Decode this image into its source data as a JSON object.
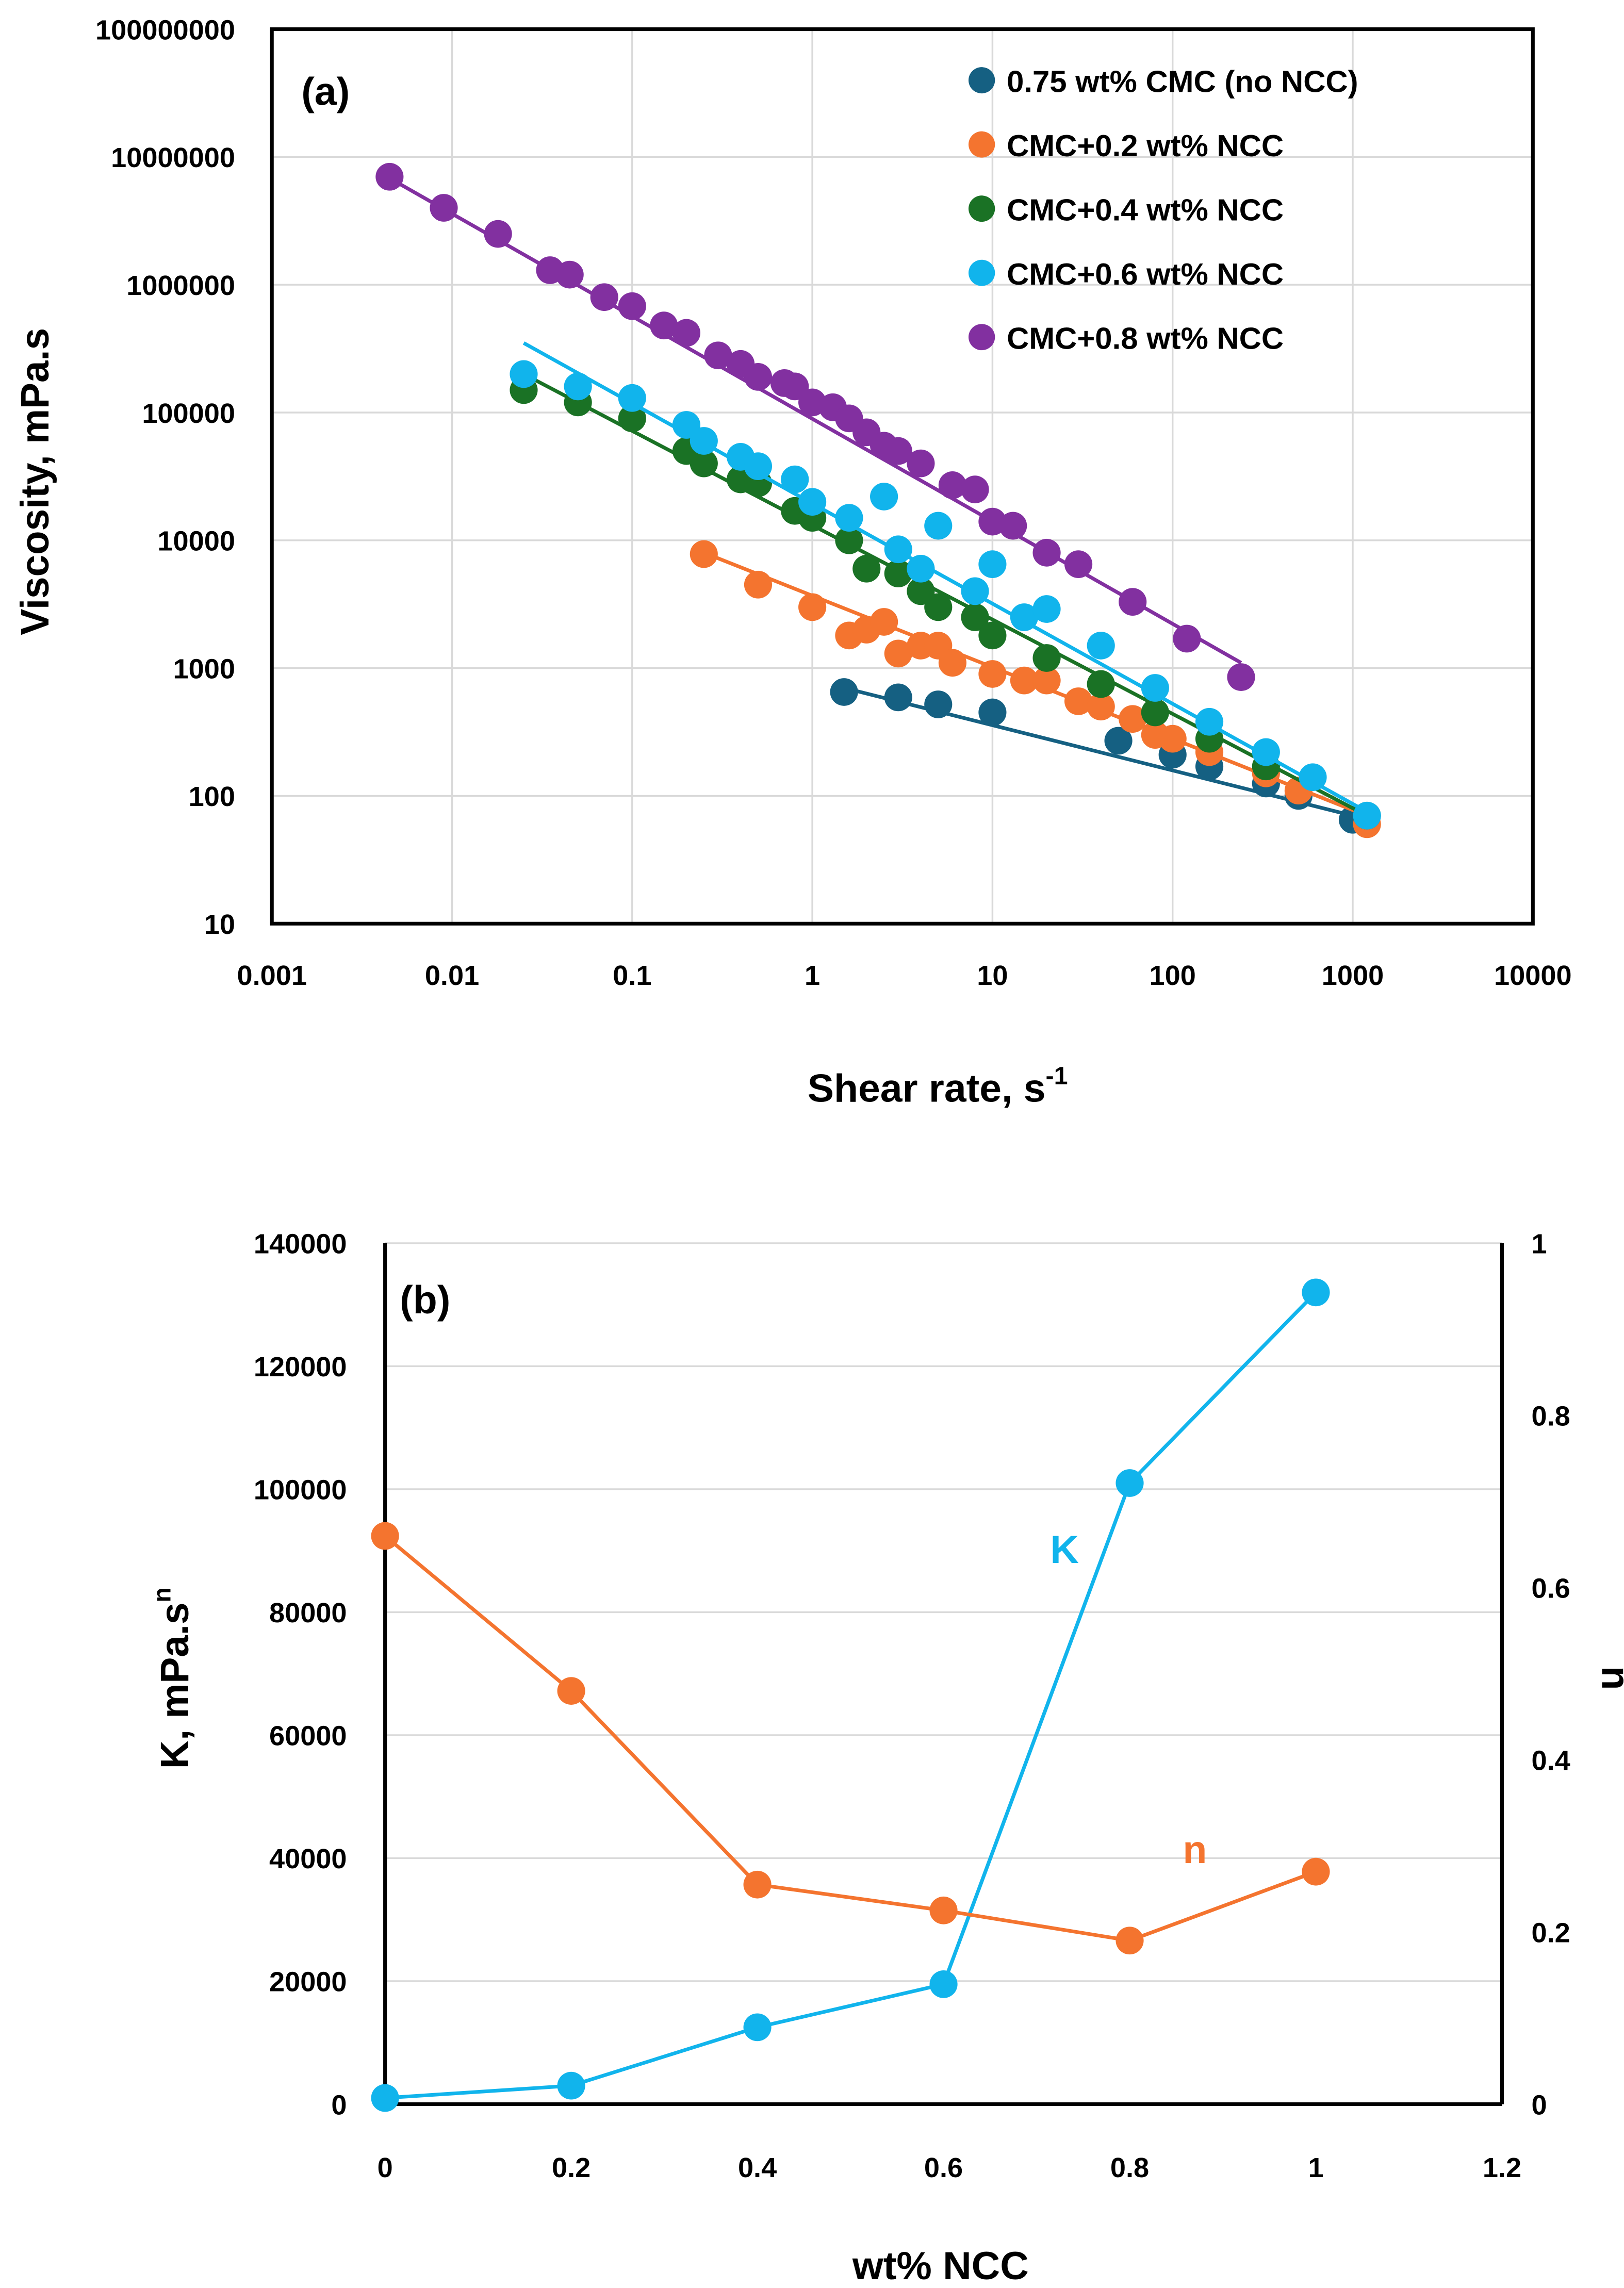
{
  "chart_data": [
    {
      "type": "scatter",
      "panel_label": "(a)",
      "xscale": "log",
      "yscale": "log",
      "xlabel_main": "Shear rate, s",
      "xlabel_sup": "-1",
      "ylabel": "Viscosity, mPa.s",
      "xlim": [
        0.001,
        10000
      ],
      "ylim": [
        10,
        100000000
      ],
      "xticks": [
        "0.001",
        "0.01",
        "0.1",
        "1",
        "10",
        "100",
        "1000",
        "10000"
      ],
      "yticks": [
        "10",
        "100",
        "1000",
        "10000",
        "100000",
        "1000000",
        "10000000",
        "100000000"
      ],
      "grid": true,
      "legend_position": "top-right",
      "series": [
        {
          "name": "0.75 wt% CMC (no NCC)",
          "color": "#156082",
          "points": [
            [
              1.5,
              650
            ],
            [
              3,
              590
            ],
            [
              5,
              520
            ],
            [
              10,
              450
            ],
            [
              50,
              270
            ],
            [
              100,
              210
            ],
            [
              160,
              170
            ],
            [
              330,
              125
            ],
            [
              500,
              100
            ],
            [
              1000,
              65
            ]
          ],
          "fit": [
            [
              1.5,
              700
            ],
            [
              1000,
              70
            ]
          ]
        },
        {
          "name": "CMC+0.2 wt% NCC",
          "color": "#F4742F",
          "points": [
            [
              0.25,
              7800
            ],
            [
              0.5,
              4500
            ],
            [
              1,
              3000
            ],
            [
              1.6,
              1800
            ],
            [
              2,
              2000
            ],
            [
              2.5,
              2300
            ],
            [
              3,
              1300
            ],
            [
              4,
              1500
            ],
            [
              5,
              1500
            ],
            [
              6,
              1100
            ],
            [
              10,
              900
            ],
            [
              15,
              800
            ],
            [
              20,
              800
            ],
            [
              30,
              550
            ],
            [
              40,
              500
            ],
            [
              60,
              400
            ],
            [
              80,
              300
            ],
            [
              100,
              280
            ],
            [
              160,
              220
            ],
            [
              330,
              150
            ],
            [
              500,
              110
            ],
            [
              1200,
              60
            ]
          ],
          "fit": [
            [
              0.25,
              8000
            ],
            [
              1200,
              70
            ]
          ]
        },
        {
          "name": "CMC+0.4 wt% NCC",
          "color": "#1A7225",
          "points": [
            [
              0.025,
              150000
            ],
            [
              0.05,
              120000
            ],
            [
              0.1,
              90000
            ],
            [
              0.2,
              50000
            ],
            [
              0.25,
              40000
            ],
            [
              0.4,
              30000
            ],
            [
              0.5,
              28000
            ],
            [
              0.8,
              17000
            ],
            [
              1,
              15000
            ],
            [
              1.6,
              10000
            ],
            [
              2,
              6000
            ],
            [
              3,
              5500
            ],
            [
              4,
              4000
            ],
            [
              5,
              3000
            ],
            [
              8,
              2500
            ],
            [
              10,
              1800
            ],
            [
              20,
              1200
            ],
            [
              40,
              750
            ],
            [
              80,
              450
            ],
            [
              160,
              280
            ],
            [
              330,
              170
            ],
            [
              1200,
              70
            ]
          ],
          "fit": [
            [
              0.025,
              200000
            ],
            [
              1200,
              70
            ]
          ]
        },
        {
          "name": "CMC+0.6 wt% NCC",
          "color": "#11B4EC",
          "points": [
            [
              0.025,
              200000
            ],
            [
              0.05,
              160000
            ],
            [
              0.1,
              130000
            ],
            [
              0.2,
              80000
            ],
            [
              0.25,
              60000
            ],
            [
              0.4,
              45000
            ],
            [
              0.5,
              38000
            ],
            [
              0.8,
              30000
            ],
            [
              1,
              20000
            ],
            [
              1.6,
              15000
            ],
            [
              2.5,
              22000
            ],
            [
              3,
              8500
            ],
            [
              4,
              6000
            ],
            [
              5,
              13000
            ],
            [
              8,
              4000
            ],
            [
              10,
              6500
            ],
            [
              15,
              2500
            ],
            [
              20,
              2900
            ],
            [
              40,
              1500
            ],
            [
              80,
              700
            ],
            [
              160,
              380
            ],
            [
              330,
              220
            ],
            [
              600,
              140
            ],
            [
              1200,
              70
            ]
          ],
          "fit": [
            [
              0.025,
              350000
            ],
            [
              1200,
              75
            ]
          ]
        },
        {
          "name": "CMC+0.8 wt% NCC",
          "color": "#8230A0",
          "points": [
            [
              0.0045,
              7000000
            ],
            [
              0.009,
              4000000
            ],
            [
              0.018,
              2500000
            ],
            [
              0.035,
              1300000
            ],
            [
              0.045,
              1200000
            ],
            [
              0.07,
              800000
            ],
            [
              0.1,
              680000
            ],
            [
              0.15,
              480000
            ],
            [
              0.2,
              420000
            ],
            [
              0.3,
              280000
            ],
            [
              0.4,
              240000
            ],
            [
              0.5,
              190000
            ],
            [
              0.7,
              170000
            ],
            [
              0.8,
              160000
            ],
            [
              1,
              120000
            ],
            [
              1.3,
              110000
            ],
            [
              1.6,
              90000
            ],
            [
              2,
              70000
            ],
            [
              2.5,
              55000
            ],
            [
              3,
              50000
            ],
            [
              4,
              40000
            ],
            [
              6,
              27000
            ],
            [
              8,
              25000
            ],
            [
              10,
              14000
            ],
            [
              13,
              13000
            ],
            [
              20,
              8000
            ],
            [
              30,
              6500
            ],
            [
              60,
              3300
            ],
            [
              120,
              1700
            ],
            [
              240,
              850
            ]
          ],
          "fit": [
            [
              0.004,
              7500000
            ],
            [
              240,
              1100
            ]
          ]
        }
      ]
    },
    {
      "type": "line",
      "panel_label": "(b)",
      "xlabel": "wt% NCC",
      "ylabel_main": "K, mPa.s",
      "ylabel_sup": "n",
      "y2label": "n",
      "xlim": [
        0,
        1.2
      ],
      "ylim": [
        0,
        140000
      ],
      "y2lim": [
        0,
        1
      ],
      "xticks": [
        "0",
        "0.2",
        "0.4",
        "0.6",
        "0.8",
        "1",
        "1.2"
      ],
      "yticks": [
        "0",
        "20000",
        "40000",
        "60000",
        "80000",
        "100000",
        "120000",
        "140000"
      ],
      "y2ticks": [
        "0",
        "0.2",
        "0.4",
        "0.6",
        "0.8",
        "1"
      ],
      "grid": true,
      "series": [
        {
          "name": "K",
          "axis": "left",
          "color": "#11B4EC",
          "label": "K",
          "label_at": [
            0.73,
            88000
          ],
          "x": [
            0,
            0.2,
            0.4,
            0.6,
            0.8,
            1
          ],
          "y": [
            1000,
            3000,
            12500,
            19500,
            101000,
            132000
          ]
        },
        {
          "name": "n",
          "axis": "right",
          "color": "#F4742F",
          "label": "n",
          "label_at": [
            0.87,
            0.28
          ],
          "x": [
            0,
            0.2,
            0.4,
            0.6,
            0.8,
            1
          ],
          "y": [
            0.66,
            0.48,
            0.255,
            0.225,
            0.19,
            0.27
          ]
        }
      ]
    }
  ]
}
